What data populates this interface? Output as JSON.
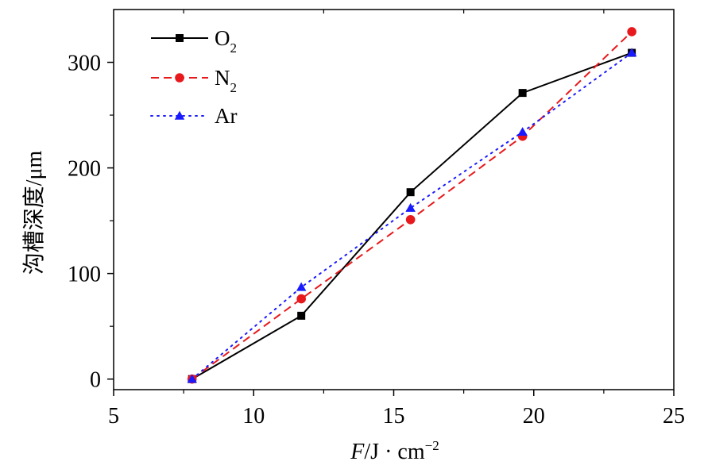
{
  "chart_data": {
    "type": "line",
    "xlabel": "F/J · cm",
    "xlabel_italic_part": "F",
    "xlabel_superscript": "−2",
    "ylabel": "沟槽深度/μm",
    "xlim": [
      5,
      25
    ],
    "ylim": [
      -10,
      350
    ],
    "xticks": [
      5,
      10,
      15,
      20,
      25
    ],
    "yticks": [
      0,
      100,
      200,
      300
    ],
    "x_tick_labels": [
      "5",
      "10",
      "15",
      "20",
      "25"
    ],
    "y_tick_labels": [
      "0",
      "100",
      "200",
      "300"
    ],
    "grid": false,
    "legend_position": "top-left",
    "series": [
      {
        "name": "O2",
        "label_main": "O",
        "label_sub": "2",
        "color": "#000000",
        "dash": "solid",
        "marker": "square",
        "x": [
          7.8,
          11.7,
          15.6,
          19.6,
          23.5
        ],
        "y": [
          0,
          60,
          177,
          271,
          309
        ]
      },
      {
        "name": "N2",
        "label_main": "N",
        "label_sub": "2",
        "color": "#e8191c",
        "dash": "dashed",
        "marker": "circle",
        "x": [
          7.8,
          11.7,
          15.6,
          19.6,
          23.5
        ],
        "y": [
          0,
          76,
          151,
          230,
          329
        ]
      },
      {
        "name": "Ar",
        "label_main": "Ar",
        "label_sub": "",
        "color": "#1a1aff",
        "dash": "dotted",
        "marker": "triangle",
        "x": [
          7.8,
          11.7,
          15.6,
          19.6,
          23.5
        ],
        "y": [
          0,
          87,
          162,
          234,
          309
        ]
      }
    ]
  }
}
